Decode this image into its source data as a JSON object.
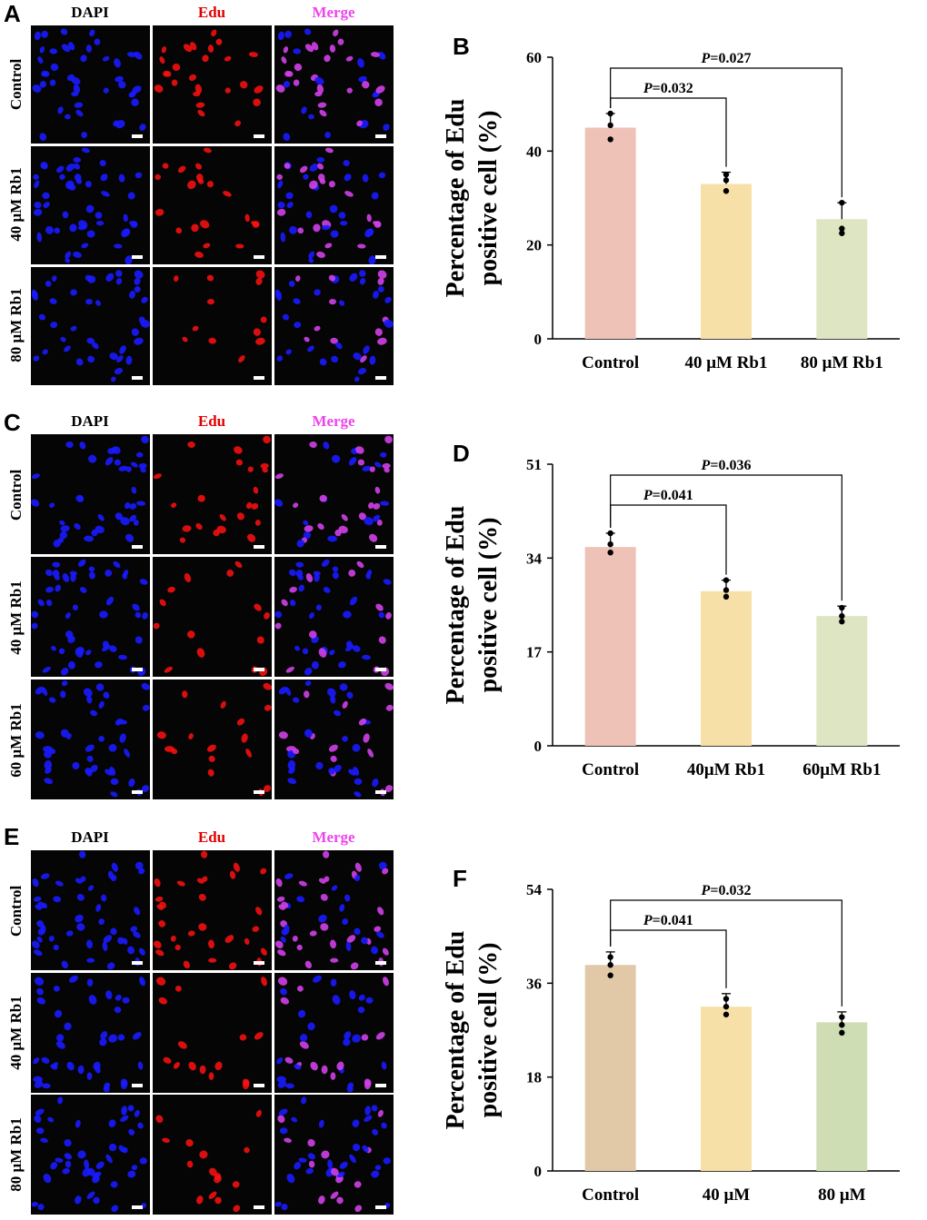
{
  "microscopy_blocks": [
    {
      "letter": "A",
      "columns": [
        "DAPI",
        "Edu",
        "Merge"
      ],
      "rows": [
        "Control",
        "40 μM Rb1",
        "80 μM Rb1"
      ]
    },
    {
      "letter": "C",
      "columns": [
        "DAPI",
        "Edu",
        "Merge"
      ],
      "rows": [
        "Control",
        "40 μM Rb1",
        "60 μM Rb1"
      ]
    },
    {
      "letter": "E",
      "columns": [
        "DAPI",
        "Edu",
        "Merge"
      ],
      "rows": [
        "Control",
        "40 μM Rb1",
        "80 μM Rb1"
      ]
    }
  ],
  "colors": {
    "dapi": "#1a1aff",
    "edu": "#ff1010",
    "merge": "#d040e8",
    "dapi_label": "#000000",
    "edu_label": "#e00000",
    "merge_label": "#ee44ee"
  },
  "chart_data": [
    {
      "letter": "B",
      "type": "bar",
      "categories": [
        "Control",
        "40 μM Rb1",
        "80 μM Rb1"
      ],
      "values": [
        45,
        33,
        25.5
      ],
      "errors": [
        3,
        2.5,
        3.5
      ],
      "points": [
        [
          42.5,
          45.5,
          48
        ],
        [
          31.5,
          33.8,
          35
        ],
        [
          22.5,
          23.5,
          29
        ]
      ],
      "bar_colors": [
        "#eec2b7",
        "#f7e0a8",
        "#dde5c2"
      ],
      "ylabel_line1": "Percentage of Edu",
      "ylabel_line2": "positive cell (%)",
      "ylim": [
        0,
        60
      ],
      "yticks": [
        "0",
        "20",
        "40",
        "60"
      ],
      "ytick_values": [
        0,
        20,
        40,
        60
      ],
      "comparisons": [
        {
          "italic": "P",
          "text": "=0.032",
          "to": 1
        },
        {
          "italic": "P",
          "text": "=0.027",
          "to": 2
        }
      ]
    },
    {
      "letter": "D",
      "type": "bar",
      "categories": [
        "Control",
        "40μM Rb1",
        "60μM Rb1"
      ],
      "values": [
        36,
        28,
        23.5
      ],
      "errors": [
        2.5,
        2,
        1.8
      ],
      "points": [
        [
          35,
          36.5,
          38.5
        ],
        [
          27,
          28.2,
          30
        ],
        [
          22.5,
          23.5,
          25
        ]
      ],
      "bar_colors": [
        "#eec2b7",
        "#f7e0a8",
        "#dde5c2"
      ],
      "ylabel_line1": "Percentage of Edu",
      "ylabel_line2": "positive cell (%)",
      "ylim": [
        0,
        51
      ],
      "yticks": [
        "0",
        "17",
        "34",
        "51"
      ],
      "ytick_values": [
        0,
        17,
        34,
        51
      ],
      "comparisons": [
        {
          "italic": "P",
          "text": "=0.041",
          "to": 1
        },
        {
          "italic": "P",
          "text": "=0.036",
          "to": 2
        }
      ]
    },
    {
      "letter": "F",
      "type": "bar",
      "categories": [
        "Control",
        "40 μM",
        "80 μM"
      ],
      "values": [
        39.5,
        31.5,
        28.5
      ],
      "errors": [
        2.5,
        2.5,
        2
      ],
      "points": [
        [
          37.5,
          39.5,
          41
        ],
        [
          30,
          31.5,
          33
        ],
        [
          26.5,
          28,
          29.5
        ]
      ],
      "bar_colors": [
        "#e1c9a8",
        "#f7e0a8",
        "#cfddb5"
      ],
      "ylabel_line1": "Percentage of Edu",
      "ylabel_line2": "positive cell (%)",
      "ylim": [
        0,
        54
      ],
      "yticks": [
        "0",
        "18",
        "36",
        "54"
      ],
      "ytick_values": [
        0,
        18,
        36,
        54
      ],
      "comparisons": [
        {
          "italic": "P",
          "text": "=0.041",
          "to": 1
        },
        {
          "italic": "P",
          "text": "=0.032",
          "to": 2
        }
      ]
    }
  ]
}
